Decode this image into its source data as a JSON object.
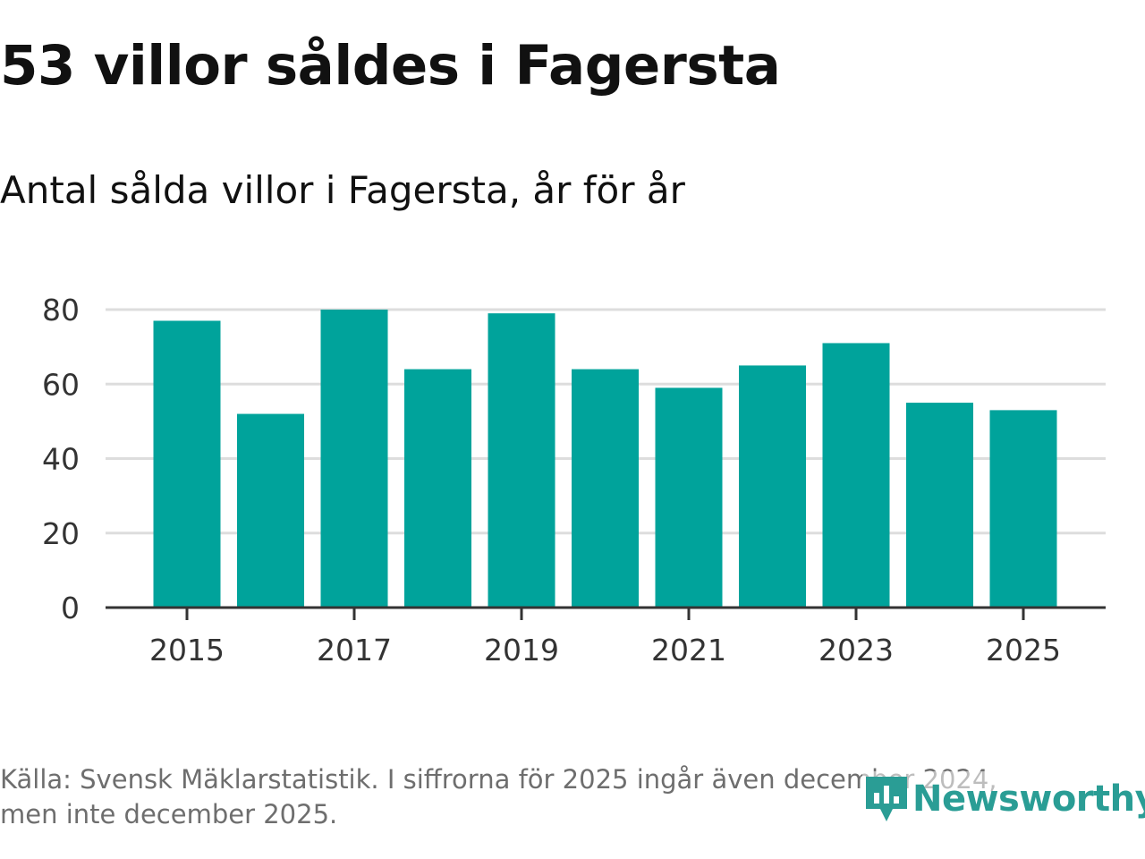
{
  "header": {
    "title": "53 villor såldes i Fagersta",
    "subtitle": "Antal sålda villor i Fagersta, år för år"
  },
  "footer": {
    "source_line1": "Källa: Svensk Mäklarstatistik. I siffrorna för 2025 ingår även december 2024,",
    "source_line2": "men inte december 2025."
  },
  "logo": {
    "text": "Newsworthy",
    "icon": "newsworthy-chart-icon",
    "color": "#2a9d95"
  },
  "colors": {
    "bar": "#00a39b",
    "grid": "#dddddd",
    "axis": "#333333",
    "tick_text": "#333333"
  },
  "chart_data": {
    "type": "bar",
    "categories": [
      "2015",
      "2016",
      "2017",
      "2018",
      "2019",
      "2020",
      "2021",
      "2022",
      "2023",
      "2024",
      "2025"
    ],
    "values": [
      77,
      52,
      80,
      64,
      79,
      64,
      59,
      65,
      71,
      55,
      53
    ],
    "x_tick_labels": [
      "2015",
      "2017",
      "2019",
      "2021",
      "2023",
      "2025"
    ],
    "y_ticks": [
      0,
      20,
      40,
      60,
      80
    ],
    "ylim": [
      0,
      80
    ],
    "grid": true,
    "title": "53 villor såldes i Fagersta",
    "subtitle": "Antal sålda villor i Fagersta, år för år",
    "xlabel": "",
    "ylabel": ""
  }
}
